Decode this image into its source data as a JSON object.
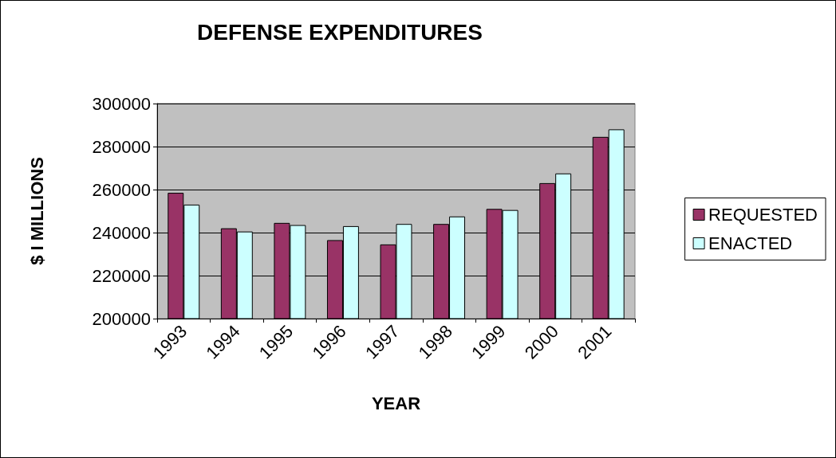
{
  "chart_data": {
    "type": "bar",
    "title": "DEFENSE EXPENDITURES",
    "xlabel": "YEAR",
    "ylabel": "$ I MILLIONS",
    "categories": [
      "1993",
      "1994",
      "1995",
      "1996",
      "1997",
      "1998",
      "1999",
      "2000",
      "2001"
    ],
    "series": [
      {
        "name": "REQUESTED",
        "color": "#993366",
        "values": [
          258500,
          242000,
          244500,
          236500,
          234500,
          244000,
          251000,
          263000,
          284500
        ]
      },
      {
        "name": "ENACTED",
        "color": "#ccffff",
        "values": [
          253000,
          240500,
          243500,
          243000,
          244000,
          247500,
          250500,
          267500,
          288000
        ]
      }
    ],
    "ylim": [
      200000,
      300000
    ],
    "yticks": [
      200000,
      220000,
      240000,
      260000,
      280000,
      300000
    ],
    "grid": "y",
    "legend": "right"
  }
}
